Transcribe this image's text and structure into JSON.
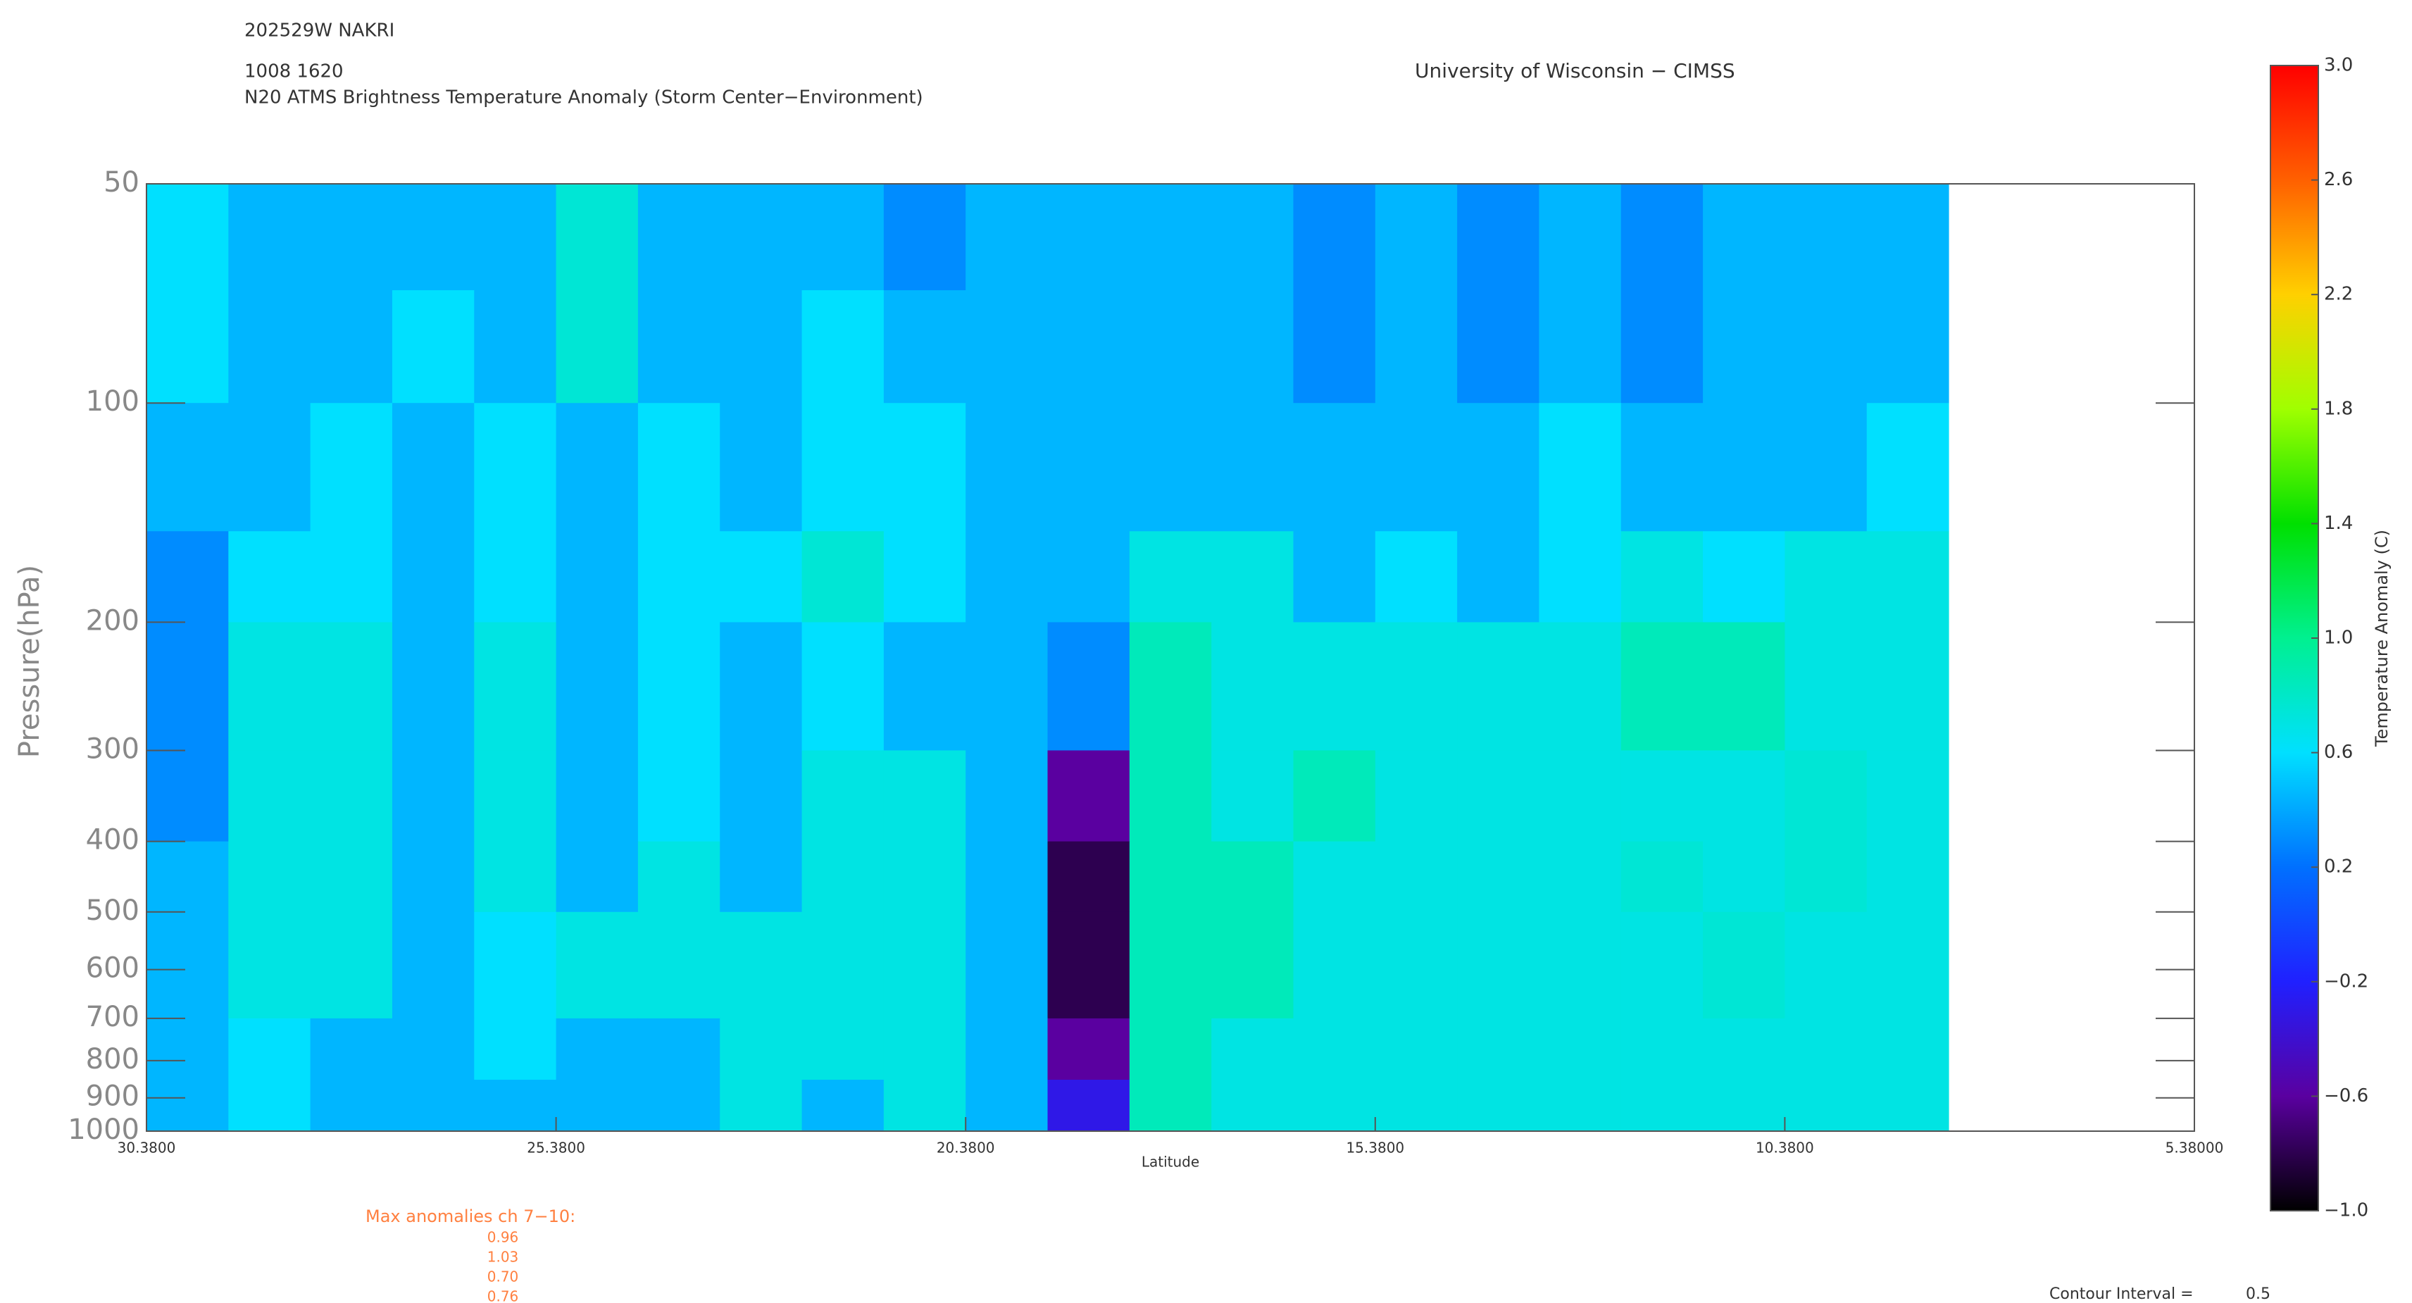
{
  "chart_data": {
    "type": "heatmap",
    "header": [
      "202529W NAKRI",
      "1008 1620"
    ],
    "title": "N20 ATMS Brightness Temperature Anomaly (Storm Center−Environment)",
    "credit": "University of Wisconsin − CIMSS",
    "xlabel": "Latitude",
    "ylabel": "Pressure(hPa)",
    "xlim": [
      30.38,
      5.38
    ],
    "xticks": [
      {
        "value": 30.38,
        "label": "30.3800"
      },
      {
        "value": 25.38,
        "label": "25.3800"
      },
      {
        "value": 20.38,
        "label": "20.3800"
      },
      {
        "value": 15.38,
        "label": "15.3800"
      },
      {
        "value": 10.38,
        "label": "10.3800"
      },
      {
        "value": 5.38,
        "label": "5.38000"
      }
    ],
    "ylim": [
      50,
      1000
    ],
    "yscale": "log",
    "yinverted": true,
    "yticks": [
      50,
      100,
      200,
      300,
      400,
      500,
      600,
      700,
      800,
      900,
      1000
    ],
    "xbins": [
      30.38,
      29.38,
      28.38,
      27.38,
      26.38,
      25.38,
      24.38,
      23.38,
      22.38,
      21.38,
      20.38,
      19.38,
      18.38,
      17.38,
      16.38,
      15.38,
      14.38,
      13.38,
      12.38,
      11.38,
      10.38,
      9.38,
      8.38
    ],
    "ybins": [
      50,
      70,
      100,
      150,
      200,
      300,
      400,
      500,
      700,
      850,
      1000
    ],
    "z": [
      [
        0.6,
        0.45,
        0.45,
        0.45,
        0.45,
        0.75,
        0.45,
        0.45,
        0.45,
        0.3,
        0.45,
        0.45,
        0.45,
        0.45,
        0.3,
        0.45,
        0.3,
        0.45,
        0.3,
        0.45,
        0.45,
        0.45
      ],
      [
        0.6,
        0.45,
        0.45,
        0.6,
        0.45,
        0.75,
        0.45,
        0.45,
        0.6,
        0.45,
        0.45,
        0.45,
        0.45,
        0.45,
        0.3,
        0.45,
        0.3,
        0.45,
        0.3,
        0.45,
        0.45,
        0.45
      ],
      [
        0.45,
        0.45,
        0.6,
        0.45,
        0.6,
        0.45,
        0.6,
        0.45,
        0.6,
        0.6,
        0.45,
        0.45,
        0.45,
        0.45,
        0.45,
        0.45,
        0.45,
        0.6,
        0.45,
        0.45,
        0.45,
        0.6
      ],
      [
        0.3,
        0.6,
        0.6,
        0.45,
        0.6,
        0.45,
        0.6,
        0.6,
        0.75,
        0.6,
        0.45,
        0.45,
        0.7,
        0.7,
        0.45,
        0.6,
        0.45,
        0.6,
        0.7,
        0.6,
        0.7,
        0.7
      ],
      [
        0.3,
        0.7,
        0.7,
        0.45,
        0.7,
        0.45,
        0.6,
        0.45,
        0.6,
        0.45,
        0.45,
        0.3,
        0.85,
        0.7,
        0.7,
        0.7,
        0.7,
        0.7,
        0.85,
        0.85,
        0.7,
        0.7
      ],
      [
        0.3,
        0.7,
        0.7,
        0.45,
        0.7,
        0.45,
        0.6,
        0.45,
        0.7,
        0.7,
        0.45,
        -0.6,
        0.85,
        0.7,
        0.85,
        0.7,
        0.7,
        0.7,
        0.7,
        0.7,
        0.75,
        0.7
      ],
      [
        0.45,
        0.7,
        0.7,
        0.45,
        0.7,
        0.45,
        0.7,
        0.45,
        0.7,
        0.7,
        0.45,
        -0.8,
        0.85,
        0.85,
        0.7,
        0.7,
        0.7,
        0.7,
        0.75,
        0.7,
        0.75,
        0.7
      ],
      [
        0.45,
        0.7,
        0.7,
        0.45,
        0.6,
        0.7,
        0.7,
        0.7,
        0.7,
        0.7,
        0.45,
        -0.8,
        0.85,
        0.85,
        0.7,
        0.7,
        0.7,
        0.7,
        0.7,
        0.75,
        0.7,
        0.7
      ],
      [
        0.45,
        0.6,
        0.45,
        0.45,
        0.6,
        0.45,
        0.45,
        0.7,
        0.7,
        0.7,
        0.45,
        -0.6,
        0.85,
        0.7,
        0.7,
        0.7,
        0.7,
        0.7,
        0.7,
        0.7,
        0.7,
        0.7
      ],
      [
        0.45,
        0.6,
        0.45,
        0.45,
        0.45,
        0.45,
        0.45,
        0.7,
        0.45,
        0.7,
        0.45,
        -0.3,
        0.85,
        0.7,
        0.7,
        0.7,
        0.7,
        0.7,
        0.7,
        0.7,
        0.7,
        0.7
      ]
    ],
    "clim": [
      -1,
      3
    ],
    "colorscale": [
      "#000000",
      "#5a00a0",
      "#2020ff",
      "#0070ff",
      "#00e0ff",
      "#00f090",
      "#00e000",
      "#a0ff00",
      "#ffd000",
      "#ff6000",
      "#ff0000"
    ],
    "colorbar_label": "Temperature Anomaly (C)",
    "colorbar_ticks": [
      {
        "value": 3,
        "label": "3.0"
      },
      {
        "value": 2.6,
        "label": "2.6"
      },
      {
        "value": 2.2,
        "label": "2.2"
      },
      {
        "value": 1.8,
        "label": "1.8"
      },
      {
        "value": 1.4,
        "label": "1.4"
      },
      {
        "value": 1,
        "label": "1.0"
      },
      {
        "value": 0.6,
        "label": "0.6"
      },
      {
        "value": 0.2,
        "label": "0.2"
      },
      {
        "value": -0.2,
        "label": "−0.2"
      },
      {
        "value": -0.6,
        "label": "−0.6"
      },
      {
        "value": -1,
        "label": "−1.0"
      }
    ],
    "max_anomalies_title": "Max anomalies ch 7−10:",
    "max_anomalies": [
      0.96,
      1.03,
      0.7,
      0.76
    ],
    "max_anomalies_labels": [
      "0.96",
      "1.03",
      "0.70",
      "0.76"
    ],
    "contour_interval_label": "Contour Interval =",
    "contour_interval": 0.5
  }
}
